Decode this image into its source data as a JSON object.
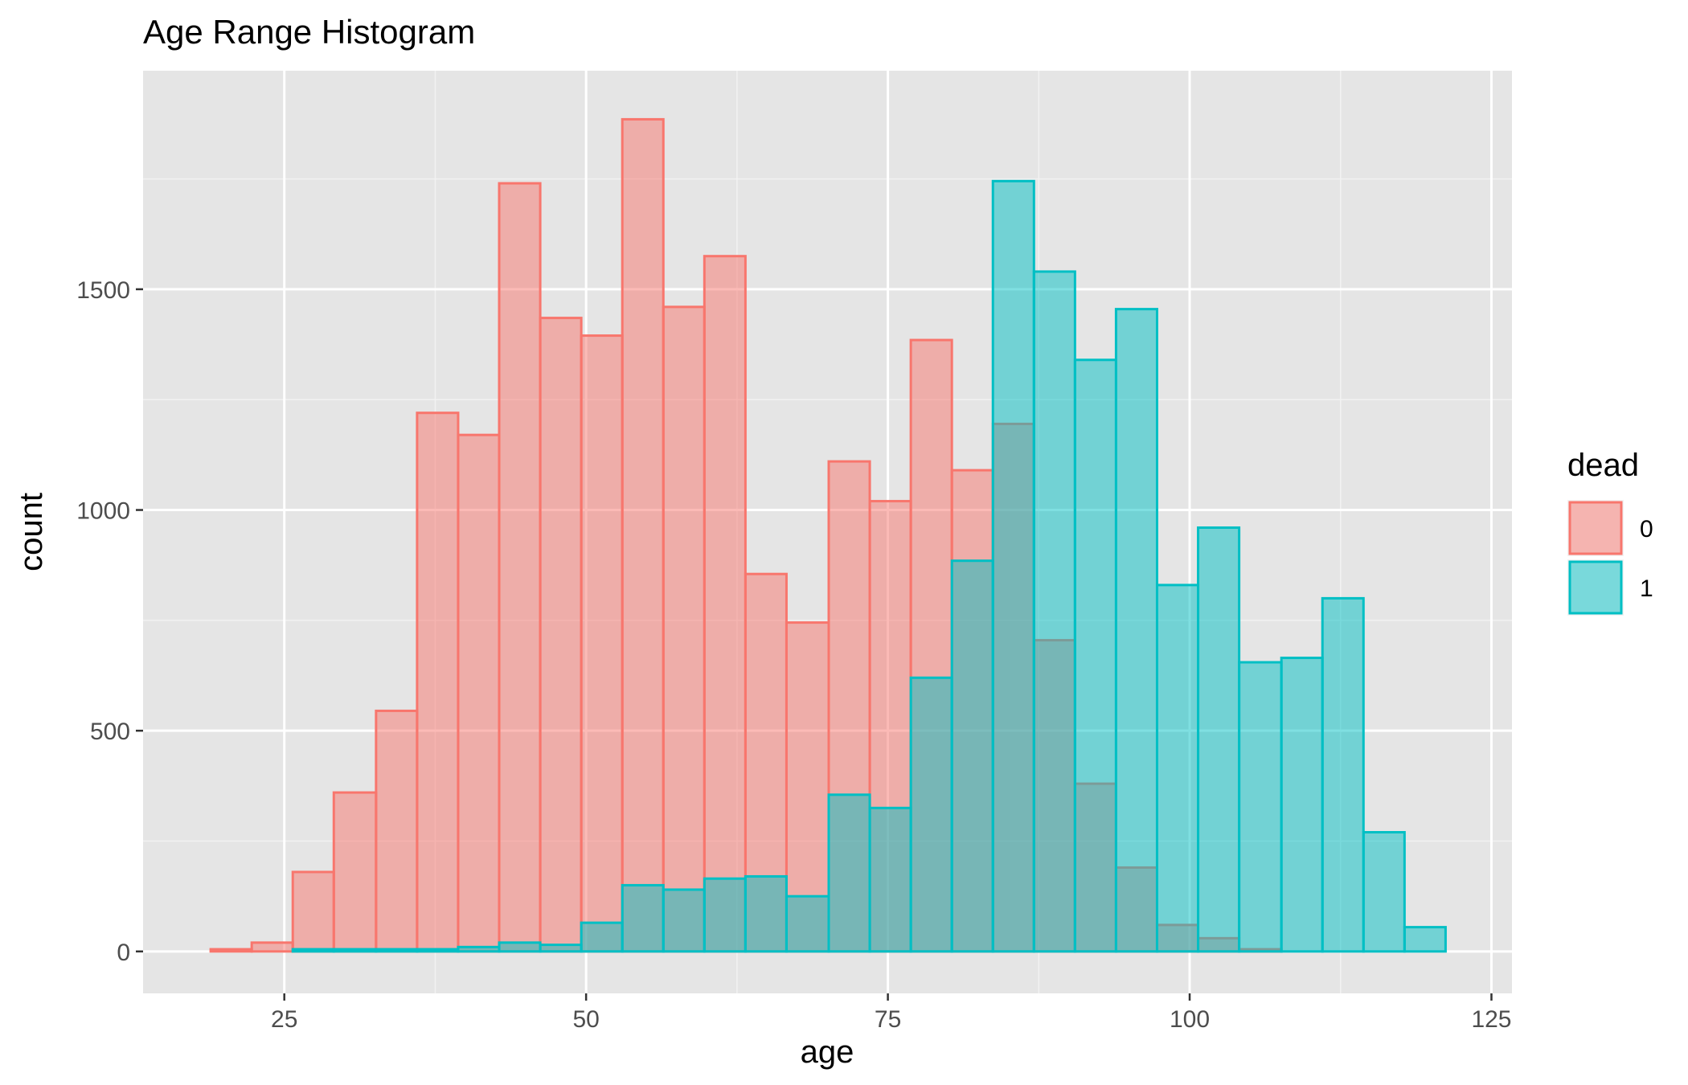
{
  "chart_data": {
    "type": "bar",
    "title": "Age Range Histogram",
    "xlabel": "age",
    "ylabel": "count",
    "xlim": [
      13.3,
      126.7
    ],
    "ylim": [
      -95,
      1995
    ],
    "x_ticks": [
      25,
      50,
      75,
      100,
      125
    ],
    "y_ticks": [
      0,
      500,
      1000,
      1500
    ],
    "bin_edges": [
      18.9,
      22.3,
      25.7,
      29.1,
      32.6,
      36.0,
      39.4,
      42.8,
      46.2,
      49.6,
      53.0,
      56.4,
      59.8,
      63.2,
      66.6,
      70.1,
      73.5,
      76.9,
      80.3,
      83.7,
      87.1,
      90.5,
      93.9,
      97.3,
      100.7,
      104.1,
      107.6,
      111.0,
      114.4,
      117.8,
      121.2
    ],
    "series": [
      {
        "name": "0",
        "color": "#F8766D",
        "values": [
          5,
          20,
          180,
          360,
          545,
          1220,
          1170,
          1740,
          1435,
          1395,
          1885,
          1460,
          1575,
          855,
          745,
          1110,
          1020,
          1385,
          1090,
          1195,
          705,
          380,
          190,
          60,
          30,
          5,
          0,
          0,
          0,
          0
        ]
      },
      {
        "name": "1",
        "color": "#00BFC4",
        "values": [
          0,
          0,
          5,
          5,
          5,
          5,
          10,
          20,
          15,
          65,
          150,
          140,
          165,
          170,
          125,
          355,
          325,
          620,
          885,
          1745,
          1540,
          1340,
          1455,
          830,
          960,
          655,
          665,
          800,
          270,
          55
        ]
      }
    ],
    "legend": {
      "title": "dead",
      "position": "right"
    },
    "grid": true
  }
}
